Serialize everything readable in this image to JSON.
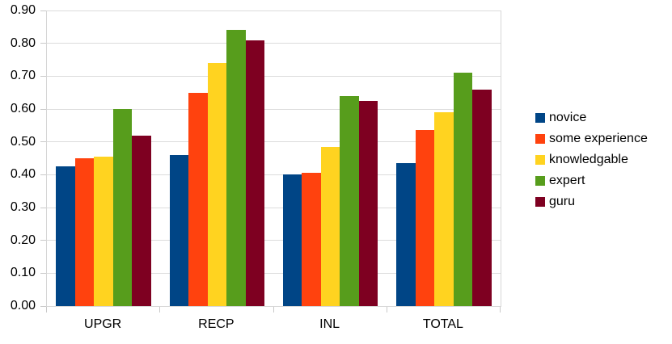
{
  "chart_data": {
    "type": "bar",
    "title": "",
    "xlabel": "",
    "ylabel": "",
    "categories": [
      "UPGR",
      "RECP",
      "INL",
      "TOTAL"
    ],
    "series": [
      {
        "name": "novice",
        "color": "#004586",
        "values": [
          0.425,
          0.46,
          0.4,
          0.435
        ]
      },
      {
        "name": "some experience",
        "color": "#FF420E",
        "values": [
          0.45,
          0.65,
          0.405,
          0.535
        ]
      },
      {
        "name": "knowledgable",
        "color": "#FFD320",
        "values": [
          0.455,
          0.74,
          0.485,
          0.59
        ]
      },
      {
        "name": "expert",
        "color": "#579D1C",
        "values": [
          0.6,
          0.84,
          0.64,
          0.71
        ]
      },
      {
        "name": "guru",
        "color": "#7E0021",
        "values": [
          0.52,
          0.81,
          0.625,
          0.66
        ]
      }
    ],
    "ylim": [
      0.0,
      0.9
    ],
    "ytick_step": 0.1,
    "ytick_labels": [
      "0.00",
      "0.10",
      "0.20",
      "0.30",
      "0.40",
      "0.50",
      "0.60",
      "0.70",
      "0.80",
      "0.90"
    ],
    "grid": true,
    "legend_position": "right"
  },
  "styles": {
    "background": "#ffffff",
    "gridline_color": "#dcdcdc",
    "axis_color": "#d6d6d6",
    "text_color": "#000000"
  }
}
